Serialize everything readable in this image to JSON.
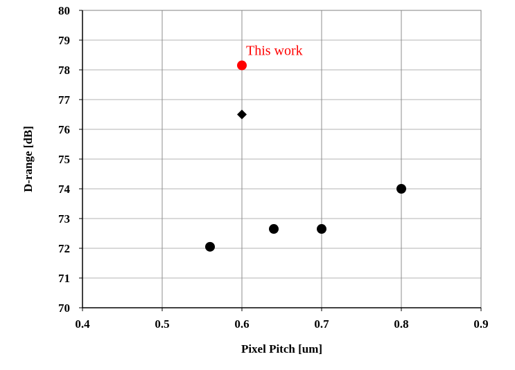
{
  "chart_data": {
    "type": "scatter",
    "title": "",
    "xlabel": "Pixel Pitch  [um]",
    "ylabel": "D-range [dB]",
    "xlim": [
      0.4,
      0.9
    ],
    "ylim": [
      70,
      80
    ],
    "x_ticks": [
      0.4,
      0.5,
      0.6,
      0.7,
      0.8,
      0.9
    ],
    "x_tick_labels": [
      "0.4",
      "0.5",
      "0.6",
      "0.7",
      "0.8",
      "0.9"
    ],
    "y_ticks": [
      70,
      71,
      72,
      73,
      74,
      75,
      76,
      77,
      78,
      79,
      80
    ],
    "y_tick_labels": [
      "70",
      "71",
      "72",
      "73",
      "74",
      "75",
      "76",
      "77",
      "78",
      "79",
      "80"
    ],
    "grid": true,
    "legend": "none",
    "series": [
      {
        "marker": "circle",
        "color": "#000000",
        "points": [
          {
            "x": 0.56,
            "y": 72.05
          },
          {
            "x": 0.64,
            "y": 72.65
          },
          {
            "x": 0.7,
            "y": 72.65
          },
          {
            "x": 0.8,
            "y": 74.0
          }
        ]
      },
      {
        "marker": "diamond",
        "color": "#000000",
        "points": [
          {
            "x": 0.6,
            "y": 76.5
          }
        ]
      },
      {
        "marker": "circle",
        "color": "#ff0000",
        "points": [
          {
            "x": 0.6,
            "y": 78.15
          }
        ]
      }
    ],
    "annotations": [
      {
        "text": "This work",
        "x": 0.6,
        "y": 78.15,
        "color": "#ff0000"
      }
    ]
  }
}
